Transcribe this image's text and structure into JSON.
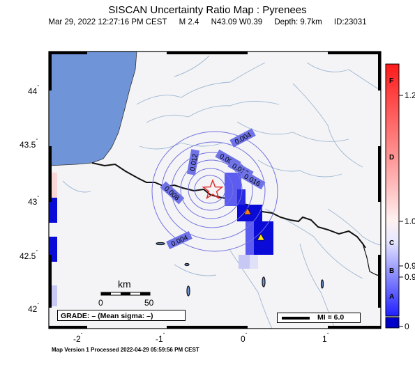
{
  "header": {
    "title": "SISCAN Uncertainty Ratio Map : Pyrenees",
    "datetime": "Mar 29, 2022 12:27:16 PM CEST",
    "magnitude": "M 2.4",
    "location": "N43.09 W0.39",
    "depth": "Depth: 9.7km",
    "event_id": "ID:23031"
  },
  "map": {
    "x_ticks": [
      "-2",
      "-1",
      "0",
      "1"
    ],
    "y_ticks": [
      "44",
      "43.5",
      "43",
      "42.5",
      "42"
    ],
    "contour_labels": [
      "0.004",
      "0.008",
      "0.012",
      "0.016",
      "0.008",
      "0.012",
      "0.004"
    ],
    "colors": {
      "ocean": "#6f95d8",
      "land": "#f4f4f6",
      "rivers": "#9cb6d2",
      "contours": "#7070e0",
      "label_fill": "#6f73e6",
      "epicenter": "#e03030",
      "cell_strong": "#0b0bd8",
      "cell_medium": "#5c5cf0",
      "cell_light": "#c8c8f4"
    },
    "stations": [
      {
        "name": "station-orange",
        "color": "#ff7f1e"
      },
      {
        "name": "station-yellow",
        "color": "#ffe818"
      }
    ]
  },
  "scale_bar": {
    "unit": "km",
    "start": "0",
    "end": "50"
  },
  "grade_legend": "GRADE: – (Mean sigma: –)",
  "mi_legend": "MI = 6.0",
  "colorbar": {
    "value_labels": [
      "1.2",
      "1.0",
      "0.9",
      "0.9",
      "0"
    ],
    "grade_labels": [
      "F",
      "D",
      "C",
      "B",
      "A"
    ],
    "top_color": "#ff2020",
    "mid_color": "#ffffff",
    "bottom_color": "#0000ff"
  },
  "footer": "Map Version 1 Processed 2022-04-29 05:59:56 PM CEST"
}
